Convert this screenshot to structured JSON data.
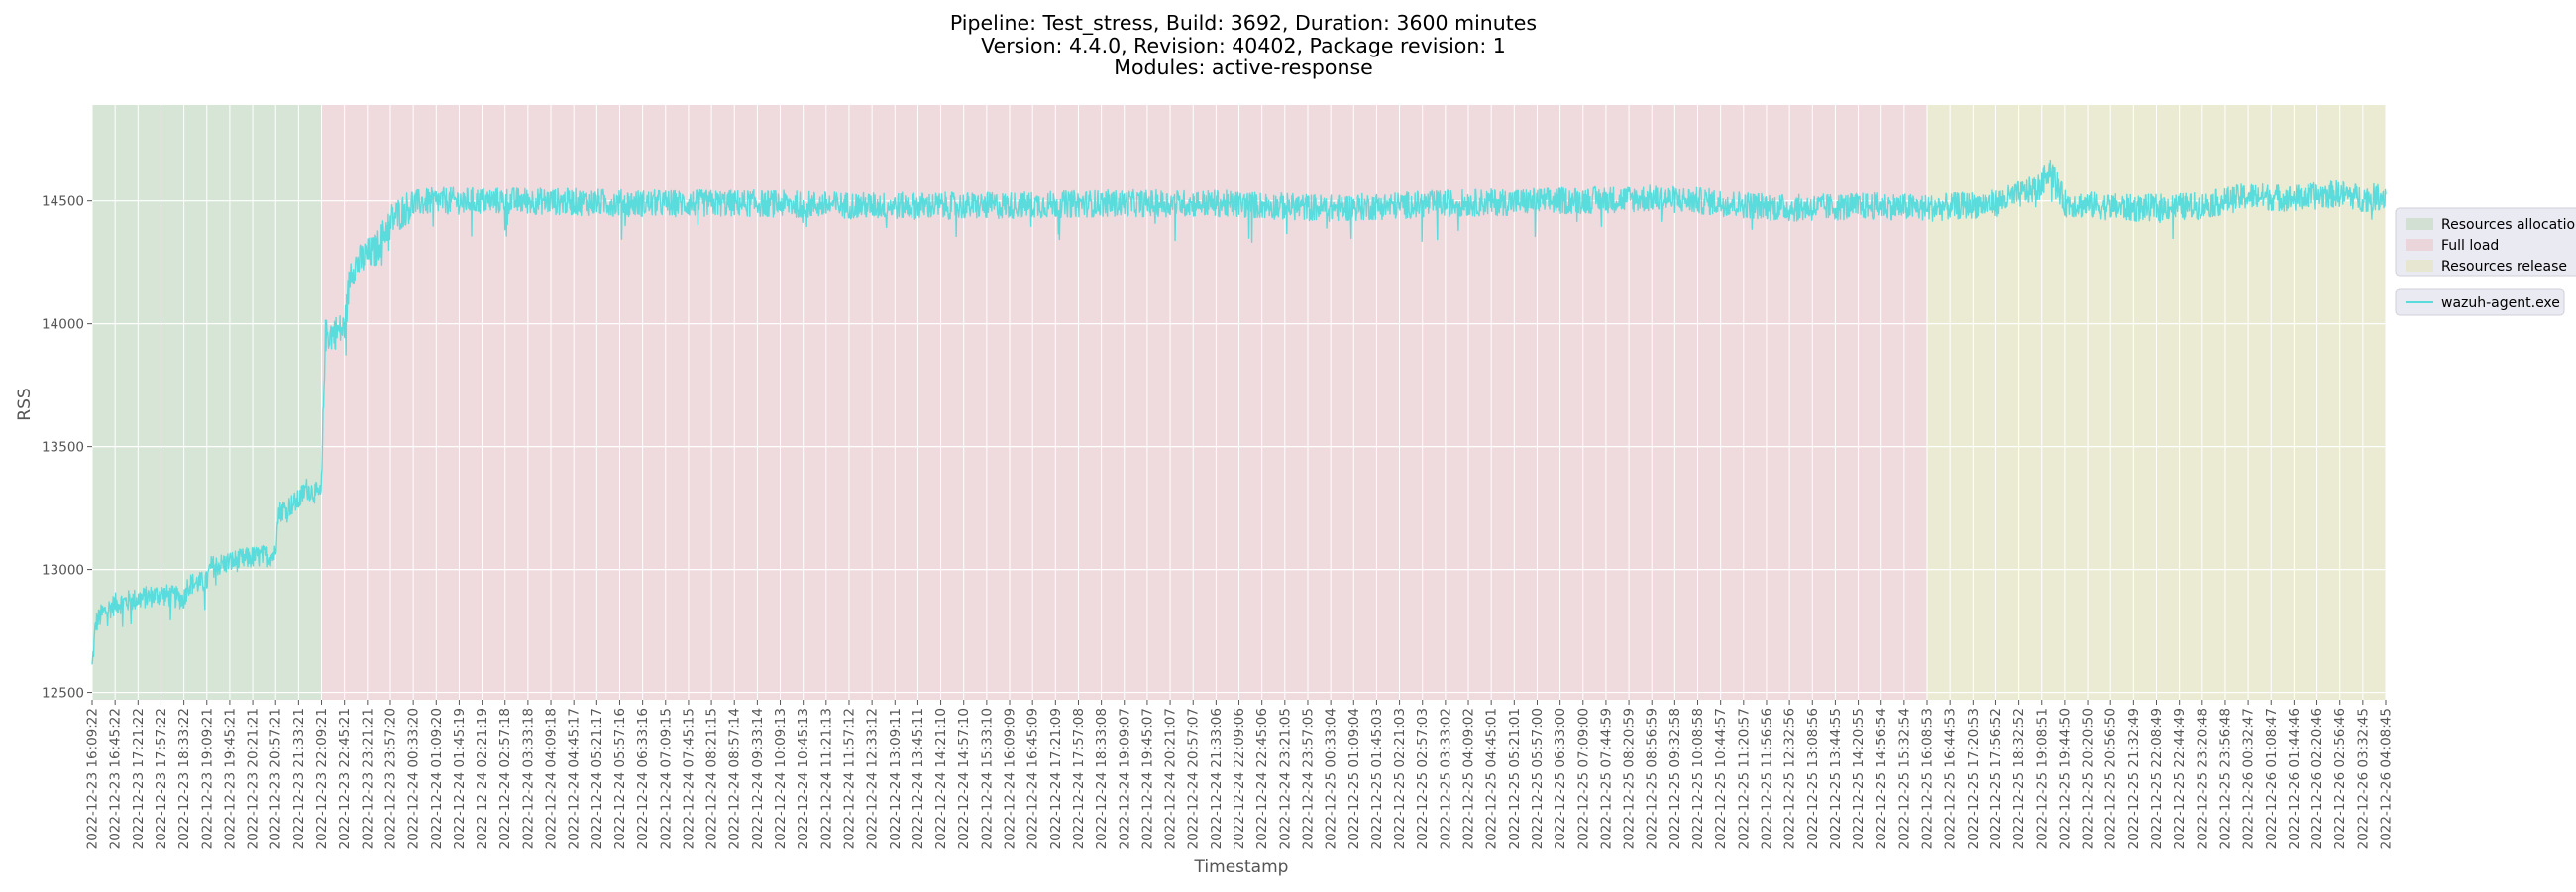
{
  "chart_data": {
    "type": "line",
    "title": [
      "Pipeline: Test_stress, Build: 3692, Duration: 3600 minutes",
      "Version: 4.4.0, Revision: 40402, Package revision: 1",
      "Modules: active-response"
    ],
    "xlabel": "Timestamp",
    "ylabel": "RSS",
    "ylim": [
      12470,
      14890
    ],
    "yticks": [
      12500,
      13000,
      13500,
      14000,
      14500
    ],
    "grid": true,
    "legend_placement": "right, outside plot area",
    "phases": [
      {
        "name": "Resources allocation",
        "color": "#c8dcc8",
        "start": "2022-12-23 16:09:22",
        "end": "2022-12-23 22:09:01"
      },
      {
        "name": "Full load",
        "color": "#e9cdd2",
        "start": "2022-12-23 22:09:01",
        "end": "2022-12-25 16:08:53"
      },
      {
        "name": "Resources release",
        "color": "#e4e4c6",
        "start": "2022-12-25 16:08:53",
        "end": "2022-12-26 04:08:45"
      }
    ],
    "legend_entries": [
      "Resources allocation",
      "Full load",
      "Resources release"
    ],
    "x_ticks": [
      "2022-12-23 16:09:22",
      "2022-12-23 16:45:22",
      "2022-12-23 17:21:22",
      "2022-12-23 17:57:22",
      "2022-12-23 18:33:22",
      "2022-12-23 19:09:21",
      "2022-12-23 19:45:21",
      "2022-12-23 20:21:21",
      "2022-12-23 20:57:21",
      "2022-12-23 21:33:21",
      "2022-12-23 22:09:21",
      "2022-12-23 22:45:21",
      "2022-12-23 23:21:21",
      "2022-12-23 23:57:20",
      "2022-12-24 00:33:20",
      "2022-12-24 01:09:20",
      "2022-12-24 01:45:19",
      "2022-12-24 02:21:19",
      "2022-12-24 02:57:18",
      "2022-12-24 03:33:18",
      "2022-12-24 04:09:18",
      "2022-12-24 04:45:17",
      "2022-12-24 05:21:17",
      "2022-12-24 05:57:16",
      "2022-12-24 06:33:16",
      "2022-12-24 07:09:15",
      "2022-12-24 07:45:15",
      "2022-12-24 08:21:15",
      "2022-12-24 08:57:14",
      "2022-12-24 09:33:14",
      "2022-12-24 10:09:13",
      "2022-12-24 10:45:13",
      "2022-12-24 11:21:13",
      "2022-12-24 11:57:12",
      "2022-12-24 12:33:12",
      "2022-12-24 13:09:11",
      "2022-12-24 13:45:11",
      "2022-12-24 14:21:10",
      "2022-12-24 14:57:10",
      "2022-12-24 15:33:10",
      "2022-12-24 16:09:09",
      "2022-12-24 16:45:09",
      "2022-12-24 17:21:09",
      "2022-12-24 17:57:08",
      "2022-12-24 18:33:08",
      "2022-12-24 19:09:07",
      "2022-12-24 19:45:07",
      "2022-12-24 20:21:07",
      "2022-12-24 20:57:07",
      "2022-12-24 21:33:06",
      "2022-12-24 22:09:06",
      "2022-12-24 22:45:06",
      "2022-12-24 23:21:05",
      "2022-12-24 23:57:05",
      "2022-12-25 00:33:04",
      "2022-12-25 01:09:04",
      "2022-12-25 01:45:03",
      "2022-12-25 02:21:03",
      "2022-12-25 02:57:03",
      "2022-12-25 03:33:02",
      "2022-12-25 04:09:02",
      "2022-12-25 04:45:01",
      "2022-12-25 05:21:01",
      "2022-12-25 05:57:00",
      "2022-12-25 06:33:00",
      "2022-12-25 07:09:00",
      "2022-12-25 07:44:59",
      "2022-12-25 08:20:59",
      "2022-12-25 08:56:59",
      "2022-12-25 09:32:58",
      "2022-12-25 10:08:58",
      "2022-12-25 10:44:57",
      "2022-12-25 11:20:57",
      "2022-12-25 11:56:56",
      "2022-12-25 12:32:56",
      "2022-12-25 13:08:56",
      "2022-12-25 13:44:55",
      "2022-12-25 14:20:55",
      "2022-12-25 14:56:54",
      "2022-12-25 15:32:54",
      "2022-12-25 16:08:53",
      "2022-12-25 16:44:53",
      "2022-12-25 17:20:53",
      "2022-12-25 17:56:52",
      "2022-12-25 18:32:52",
      "2022-12-25 19:08:51",
      "2022-12-25 19:44:50",
      "2022-12-25 20:20:50",
      "2022-12-25 20:56:50",
      "2022-12-25 21:32:49",
      "2022-12-25 22:08:49",
      "2022-12-25 22:44:49",
      "2022-12-25 23:20:48",
      "2022-12-25 23:56:48",
      "2022-12-26 00:32:47",
      "2022-12-26 01:08:47",
      "2022-12-26 01:44:46",
      "2022-12-26 02:20:46",
      "2022-12-26 02:56:46",
      "2022-12-26 03:32:45",
      "2022-12-26 04:08:45"
    ],
    "series": [
      {
        "name": "wazuh-agent.exe",
        "color": "#5adcdc",
        "x": [
          "2022-12-23 16:09:22",
          "2022-12-23 16:15:00",
          "2022-12-23 16:25:00",
          "2022-12-23 16:45:22",
          "2022-12-23 17:21:22",
          "2022-12-23 17:57:22",
          "2022-12-23 18:33:22",
          "2022-12-23 18:40:00",
          "2022-12-23 19:09:21",
          "2022-12-23 19:15:00",
          "2022-12-23 19:45:21",
          "2022-12-23 20:21:21",
          "2022-12-23 20:57:21",
          "2022-12-23 21:00:00",
          "2022-12-23 21:33:21",
          "2022-12-23 21:45:00",
          "2022-12-23 22:09:01",
          "2022-12-23 22:15:00",
          "2022-12-23 22:45:21",
          "2022-12-23 22:55:00",
          "2022-12-23 23:21:21",
          "2022-12-23 23:35:00",
          "2022-12-23 23:57:20",
          "2022-12-24 00:33:20",
          "2022-12-24 01:09:20",
          "2022-12-24 03:33:18",
          "2022-12-24 06:33:16",
          "2022-12-24 09:33:14",
          "2022-12-24 12:33:12",
          "2022-12-24 15:33:10",
          "2022-12-24 18:33:08",
          "2022-12-24 21:33:06",
          "2022-12-25 00:33:04",
          "2022-12-25 03:33:02",
          "2022-12-25 06:33:00",
          "2022-12-25 08:56:59",
          "2022-12-25 10:08:58",
          "2022-12-25 12:32:56",
          "2022-12-25 14:56:54",
          "2022-12-25 16:08:53",
          "2022-12-25 17:56:52",
          "2022-12-25 19:08:51",
          "2022-12-25 19:20:00",
          "2022-12-25 19:44:50",
          "2022-12-25 21:32:49",
          "2022-12-25 23:20:48",
          "2022-12-26 00:32:47",
          "2022-12-26 01:44:46",
          "2022-12-26 02:56:46",
          "2022-12-26 03:32:45",
          "2022-12-26 04:08:45"
        ],
        "values": [
          12600,
          12780,
          12820,
          12860,
          12880,
          12900,
          12880,
          12940,
          12950,
          13010,
          13030,
          13050,
          13060,
          13230,
          13280,
          13330,
          13300,
          13950,
          13980,
          14220,
          14280,
          14300,
          14420,
          14490,
          14500,
          14500,
          14490,
          14490,
          14480,
          14480,
          14490,
          14490,
          14470,
          14490,
          14500,
          14510,
          14500,
          14470,
          14480,
          14470,
          14490,
          14560,
          14650,
          14490,
          14470,
          14480,
          14520,
          14510,
          14530,
          14510,
          14520
        ],
        "bands": [
          {
            "from": "2022-12-23 16:09:22",
            "to": "2022-12-23 22:09:01",
            "spread": 45
          },
          {
            "from": "2022-12-23 22:09:01",
            "to": "2022-12-24 00:33:20",
            "spread": 70
          },
          {
            "from": "2022-12-24 00:33:20",
            "to": "2022-12-26 04:08:45",
            "spread": 55
          }
        ]
      }
    ]
  }
}
